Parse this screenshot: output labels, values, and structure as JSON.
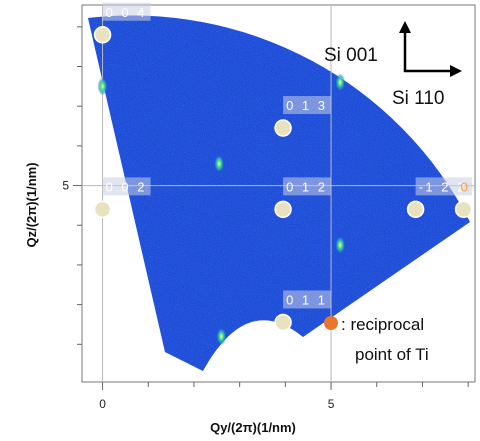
{
  "chart_data": {
    "type": "heatmap",
    "title": "",
    "xlabel": "Qy/(2π)(1/nm)",
    "ylabel": "Qz/(2π)(1/nm)",
    "xlim": [
      -0.45,
      8.15
    ],
    "ylim": [
      0.05,
      9.55
    ],
    "x_ticks": [
      0,
      5
    ],
    "y_ticks": [
      5
    ],
    "grid": true,
    "colormap": "blue intensity",
    "ti_points": [
      {
        "label": "0 0 4",
        "x": 0.0,
        "y": 8.8,
        "label_color": "white"
      },
      {
        "label": "0 1 3",
        "x": 3.95,
        "y": 6.45,
        "label_color": "white"
      },
      {
        "label": "0 0 2",
        "x": 0.0,
        "y": 4.4,
        "label_color": "white"
      },
      {
        "label": "0 1 2",
        "x": 3.95,
        "y": 4.4,
        "label_color": "white"
      },
      {
        "label": "-1 2 2",
        "x": 6.85,
        "y": 4.4,
        "label_color": "white"
      },
      {
        "label": "0",
        "x": 7.9,
        "y": 4.4,
        "label_color": "orange"
      },
      {
        "label": "0 1 1",
        "x": 3.95,
        "y": 1.55,
        "label_color": "white"
      }
    ],
    "bright_spots": [
      {
        "x": 0.0,
        "y": 7.5
      },
      {
        "x": 5.2,
        "y": 7.6
      },
      {
        "x": 2.55,
        "y": 5.55
      },
      {
        "x": 2.6,
        "y": 1.2
      },
      {
        "x": 5.2,
        "y": 3.5
      }
    ],
    "legend": {
      "marker_color": "#e8762c",
      "text_lines": [
        ": reciprocal",
        "point of Ti"
      ]
    },
    "direction_labels": {
      "up": "Si 001",
      "right": "Si 110"
    }
  }
}
